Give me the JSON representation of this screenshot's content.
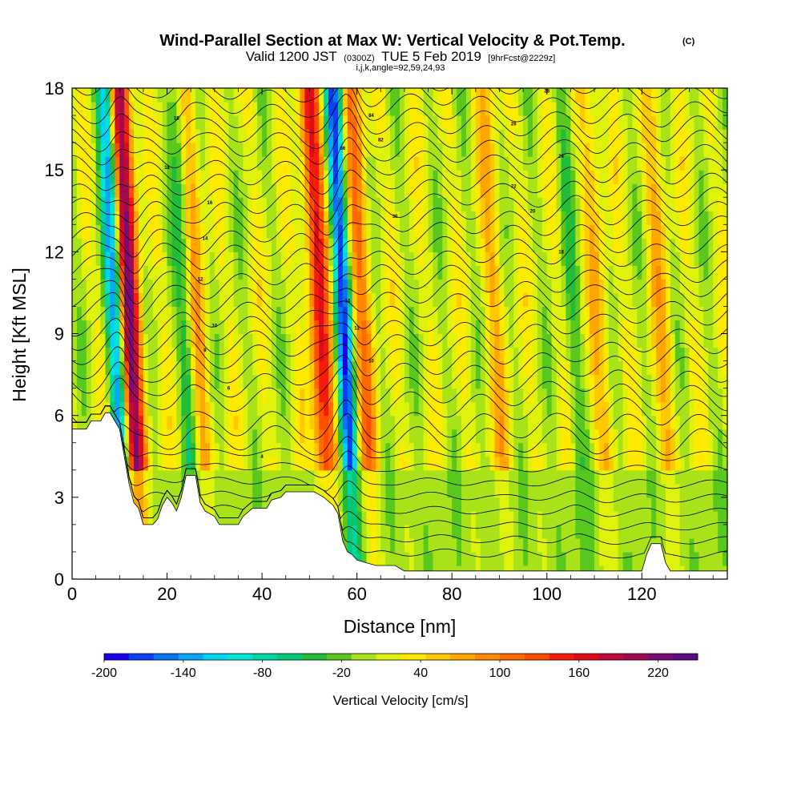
{
  "chart_data": {
    "type": "heatmap",
    "title": "Wind-Parallel Section at Max W: Vertical Velocity & Pot.Temp.",
    "title_mark": "(C)",
    "subtitle_valid": "Valid 1200 JST",
    "subtitle_utc": "(0300Z)",
    "subtitle_date": "TUE 5 Feb 2019",
    "subtitle_fcst": "[9hrFcst@2229z]",
    "subtitle_index": "i,j,k,angle=92,59,24,93",
    "xlabel": "Distance [nm]",
    "ylabel": "Height [Kft MSL]",
    "xlim": [
      0,
      138
    ],
    "ylim": [
      0,
      18
    ],
    "x_ticks": [
      "0",
      "20",
      "40",
      "60",
      "80",
      "100",
      "120"
    ],
    "y_ticks": [
      "0",
      "3",
      "6",
      "9",
      "12",
      "15",
      "18"
    ],
    "colorbar": {
      "label": "Vertical Velocity [cm/s]",
      "range": [
        -200,
        250
      ],
      "tick_labels": [
        "-200",
        "-140",
        "-80",
        "-20",
        "40",
        "100",
        "160",
        "220"
      ],
      "colors": [
        "#1a00f0",
        "#0a3ff2",
        "#0a72f5",
        "#09a5f6",
        "#00d4f2",
        "#00e6d2",
        "#00d6a0",
        "#05c877",
        "#22bd38",
        "#59c81e",
        "#a8e219",
        "#dff20c",
        "#ffea00",
        "#ffc800",
        "#ffa500",
        "#ff8800",
        "#ff6a00",
        "#ff4d00",
        "#f51a0a",
        "#e00a1a",
        "#c20a3a",
        "#a00a55",
        "#7a0a75",
        "#5a0a80"
      ]
    },
    "updraft_bands": [
      {
        "x": 13,
        "w": 200
      },
      {
        "x": 27,
        "w": 60
      },
      {
        "x": 53,
        "w": 140
      },
      {
        "x": 62,
        "w": 80
      },
      {
        "x": 90,
        "w": 40
      },
      {
        "x": 112,
        "w": 40
      },
      {
        "x": 125,
        "w": 40
      }
    ],
    "downdraft_bands": [
      {
        "x": 10,
        "w": -150
      },
      {
        "x": 58,
        "w": -170
      },
      {
        "x": 25,
        "w": -60
      },
      {
        "x": 106,
        "w": -30
      }
    ],
    "terrain_km": [
      [
        0,
        5.5
      ],
      [
        3,
        5.5
      ],
      [
        4,
        5.8
      ],
      [
        6,
        5.8
      ],
      [
        7,
        6.1
      ],
      [
        8,
        6.1
      ],
      [
        9,
        5.8
      ],
      [
        10,
        5.5
      ],
      [
        11,
        4.5
      ],
      [
        12,
        3.5
      ],
      [
        13,
        2.8
      ],
      [
        14,
        2.6
      ],
      [
        15,
        2.0
      ],
      [
        17,
        2.0
      ],
      [
        18,
        2.2
      ],
      [
        19,
        2.7
      ],
      [
        20,
        3.0
      ],
      [
        21,
        2.8
      ],
      [
        22,
        2.5
      ],
      [
        23,
        3.0
      ],
      [
        24,
        3.8
      ],
      [
        26,
        3.8
      ],
      [
        27,
        2.8
      ],
      [
        28,
        2.5
      ],
      [
        30,
        2.3
      ],
      [
        31,
        2.0
      ],
      [
        35,
        2.0
      ],
      [
        36,
        2.3
      ],
      [
        38,
        2.6
      ],
      [
        41,
        2.6
      ],
      [
        42,
        2.9
      ],
      [
        44,
        3.0
      ],
      [
        45,
        3.2
      ],
      [
        51,
        3.2
      ],
      [
        53,
        3.0
      ],
      [
        55,
        2.7
      ],
      [
        56,
        2.4
      ],
      [
        57,
        1.4
      ],
      [
        58,
        1.0
      ],
      [
        59,
        0.9
      ],
      [
        60,
        0.7
      ],
      [
        62,
        0.6
      ],
      [
        64,
        0.5
      ],
      [
        68,
        0.5
      ],
      [
        70,
        0.3
      ],
      [
        80,
        0.3
      ],
      [
        92,
        0.3
      ],
      [
        120,
        0.3
      ],
      [
        121,
        0.9
      ],
      [
        122,
        1.3
      ],
      [
        124,
        1.3
      ],
      [
        125,
        0.6
      ],
      [
        126,
        0.3
      ],
      [
        138,
        0.3
      ]
    ],
    "isentrope_labels": [
      "18",
      "18",
      "16",
      "14",
      "12",
      "10",
      "8",
      "4",
      "6",
      "14",
      "12",
      "10",
      "86",
      "84",
      "82",
      "30",
      "28",
      "26",
      "24",
      "22",
      "20",
      "18"
    ]
  }
}
